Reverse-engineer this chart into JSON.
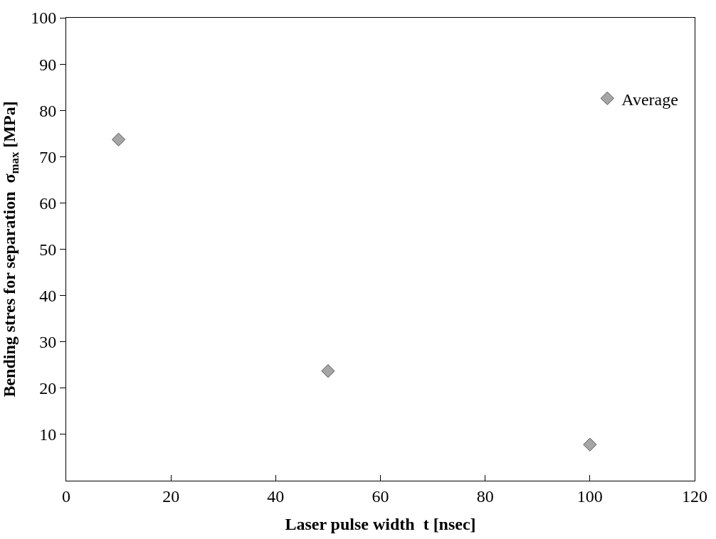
{
  "chart_data": {
    "type": "scatter",
    "xlabel": "Laser pulse width  t [nsec]",
    "ylabel": "Bending stres for separation  σ$_{max}$ [MPa]",
    "x": [
      10,
      50,
      100
    ],
    "series": [
      {
        "name": "Average",
        "color": "#a6a6a6",
        "values": [
          73.7,
          23.7,
          7.8
        ]
      }
    ],
    "marker": "diamond",
    "xlim": [
      0,
      120
    ],
    "xticks": [
      0,
      20,
      40,
      60,
      80,
      100,
      120
    ],
    "ylim": [
      0,
      100
    ],
    "yticks": [
      10,
      20,
      30,
      40,
      50,
      60,
      70,
      80,
      90,
      100
    ],
    "legend": "top right"
  }
}
